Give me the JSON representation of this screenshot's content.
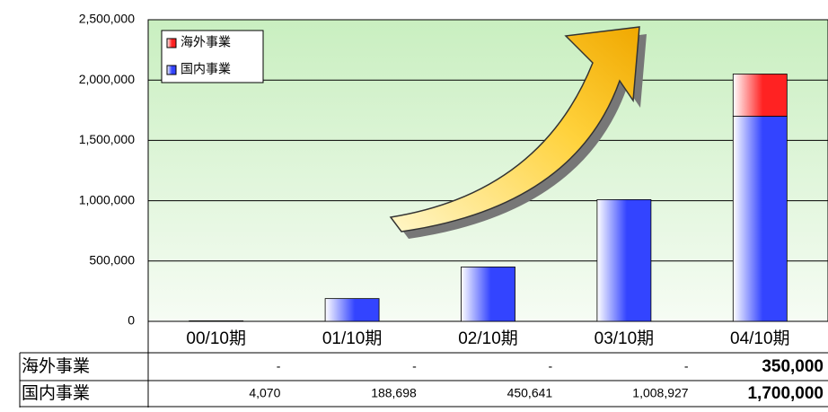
{
  "chart_data": {
    "type": "bar",
    "stacked": true,
    "categories": [
      "00/10期",
      "01/10期",
      "02/10期",
      "03/10期",
      "04/10期"
    ],
    "series": [
      {
        "name": "国内事業",
        "color": "#3344ff",
        "values": [
          4070,
          188698,
          450641,
          1008927,
          1700000
        ],
        "value_labels": [
          "4,070",
          "188,698",
          "450,641",
          "1,008,927",
          "1,700,000"
        ]
      },
      {
        "name": "海外事業",
        "color": "#ff2222",
        "values": [
          0,
          0,
          0,
          0,
          350000
        ],
        "value_labels": [
          "-",
          "-",
          "-",
          "-",
          "350,000"
        ]
      }
    ],
    "ylim": [
      0,
      2500000
    ],
    "yticks": [
      0,
      {
        "value": 500000,
        "label": "500,000"
      },
      {
        "value": 1000000,
        "label": "1,000,000"
      },
      {
        "value": 1500000,
        "label": "1,500,000"
      },
      {
        "value": 2000000,
        "label": "2,000,000"
      },
      {
        "value": 2500000,
        "label": "2,500,000"
      }
    ],
    "grid": true
  }
}
